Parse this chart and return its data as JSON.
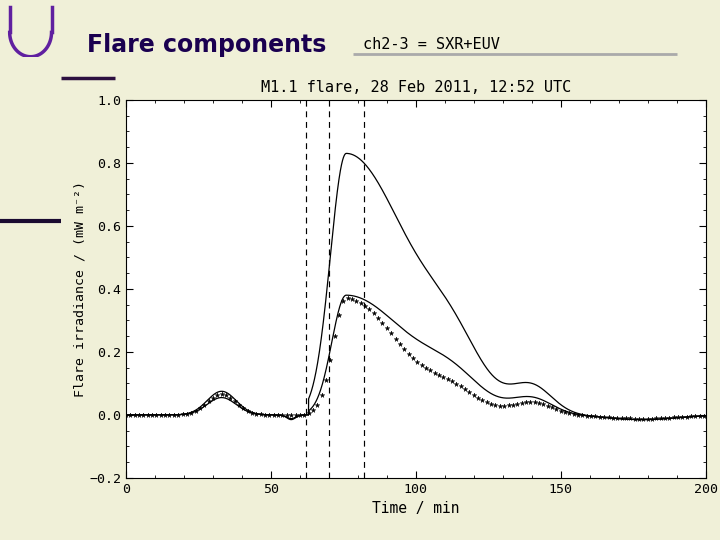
{
  "title_main": "Flare components",
  "title_sub": "ch2-3 = SXR+EUV",
  "plot_title": "M1.1 flare, 28 Feb 2011, 12:52 UTC",
  "xlabel": "Time / min",
  "ylabel": "Flare irradiance / (mW m⁻²)",
  "xlim": [
    0,
    200
  ],
  "ylim": [
    -0.2,
    1.0
  ],
  "xticks": [
    0,
    50,
    100,
    150,
    200
  ],
  "yticks": [
    -0.2,
    0.0,
    0.2,
    0.4,
    0.6,
    0.8,
    1.0
  ],
  "vlines": [
    62,
    70,
    82
  ],
  "bg_color": "#f0f0d8",
  "panel_bg": "#ffffff",
  "curve_color": "#000000",
  "sidebar_color": "#c0c09a",
  "sidebar_line_color": "#1a0a30",
  "title_color": "#1a0050"
}
